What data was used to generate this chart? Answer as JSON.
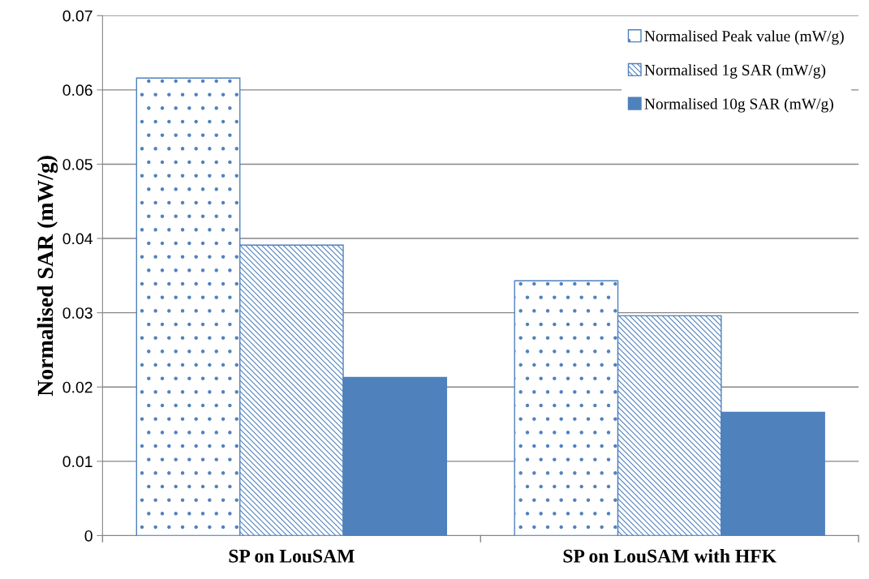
{
  "chart_data": {
    "type": "bar",
    "ylabel": "Normalised SAR (mW/g)",
    "categories": [
      "SP on LouSAM",
      "SP on LouSAM with HFK"
    ],
    "series": [
      {
        "name": "Normalised Peak value (mW/g)",
        "color": "#4f81bd",
        "values": [
          0.0616,
          0.0343
        ]
      },
      {
        "name": "Normalised 1g SAR (mW/g)",
        "color": "#4f81bd",
        "values": [
          0.0391,
          0.0296
        ]
      },
      {
        "name": "Normalised 10g SAR (mW/g)",
        "color": "#4f81bd",
        "values": [
          0.0213,
          0.0166
        ]
      }
    ],
    "ylim": [
      0,
      0.07
    ],
    "yticks": [
      {
        "value": 0,
        "label": "0"
      },
      0.01,
      0.02,
      0.03,
      0.04,
      0.05,
      0.06,
      0.07
    ],
    "grid": "y",
    "legend": "top right"
  }
}
